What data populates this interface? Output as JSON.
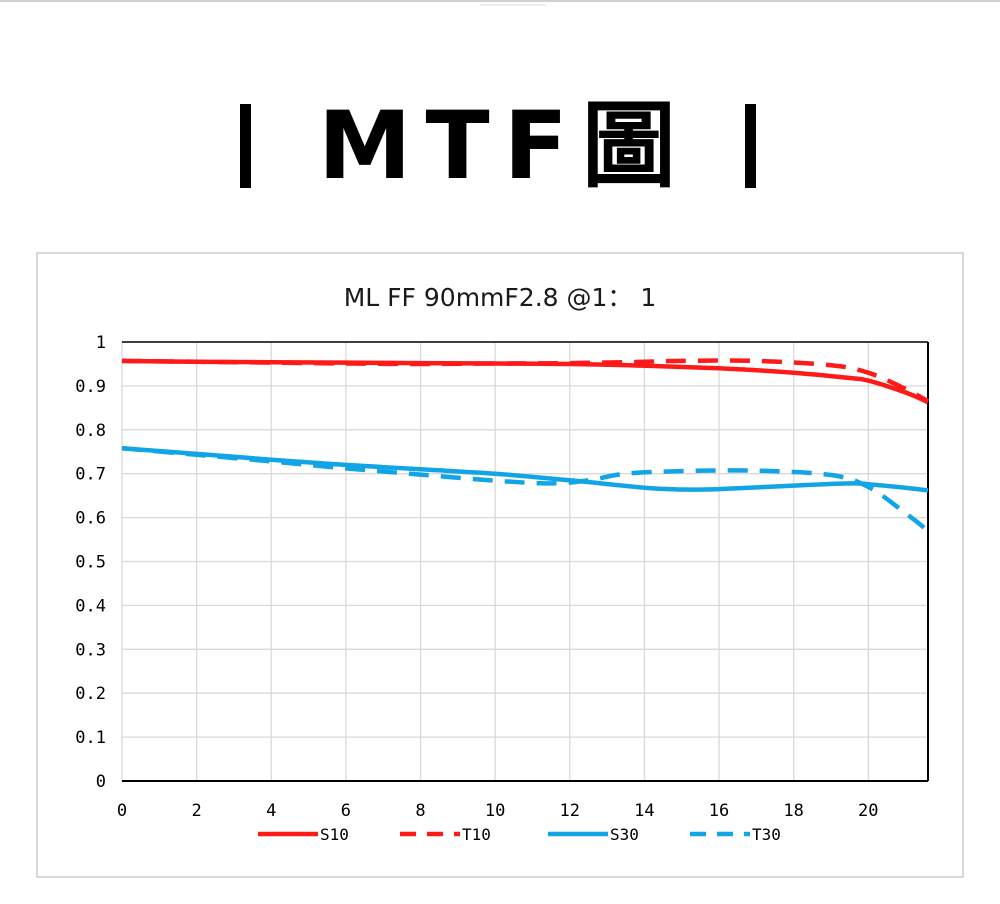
{
  "heading": {
    "bar_glyph": "|",
    "text": "MTF圖"
  },
  "chart_data": {
    "type": "line",
    "title": "ML FF 90mmF2.8 @1： 1",
    "xlabel": "",
    "ylabel": "",
    "xlim": [
      0,
      21.6
    ],
    "ylim": [
      0,
      1
    ],
    "x_ticks": [
      "0",
      "2",
      "4",
      "6",
      "8",
      "10",
      "12",
      "14",
      "16",
      "18",
      "20"
    ],
    "y_ticks": [
      "1",
      "0.9",
      "0.8",
      "0.7",
      "0.6",
      "0.5",
      "0.4",
      "0.3",
      "0.2",
      "0.1",
      "0"
    ],
    "grid": true,
    "legend_position": "bottom",
    "series": [
      {
        "name": "S10",
        "color": "#ff1a1a",
        "dash": false,
        "points": [
          [
            0,
            0.957
          ],
          [
            2,
            0.955
          ],
          [
            4,
            0.954
          ],
          [
            6,
            0.953
          ],
          [
            8,
            0.952
          ],
          [
            10,
            0.951
          ],
          [
            12,
            0.95
          ],
          [
            14,
            0.946
          ],
          [
            16,
            0.94
          ],
          [
            18,
            0.93
          ],
          [
            19.5,
            0.918
          ],
          [
            20,
            0.912
          ],
          [
            21,
            0.885
          ],
          [
            21.6,
            0.863
          ]
        ]
      },
      {
        "name": "T10",
        "color": "#ff1a1a",
        "dash": true,
        "points": [
          [
            0,
            0.957
          ],
          [
            2,
            0.955
          ],
          [
            4,
            0.953
          ],
          [
            6,
            0.951
          ],
          [
            8,
            0.95
          ],
          [
            10,
            0.951
          ],
          [
            12,
            0.952
          ],
          [
            14,
            0.955
          ],
          [
            15,
            0.957
          ],
          [
            17,
            0.957
          ],
          [
            19,
            0.947
          ],
          [
            20,
            0.93
          ],
          [
            21,
            0.893
          ],
          [
            21.6,
            0.865
          ]
        ]
      },
      {
        "name": "S30",
        "color": "#12a5e6",
        "dash": false,
        "points": [
          [
            0,
            0.758
          ],
          [
            2,
            0.745
          ],
          [
            4,
            0.732
          ],
          [
            6,
            0.72
          ],
          [
            8,
            0.71
          ],
          [
            10,
            0.7
          ],
          [
            12,
            0.685
          ],
          [
            14,
            0.668
          ],
          [
            15,
            0.664
          ],
          [
            16,
            0.665
          ],
          [
            18,
            0.673
          ],
          [
            19.5,
            0.678
          ],
          [
            20,
            0.676
          ],
          [
            21,
            0.668
          ],
          [
            21.6,
            0.662
          ]
        ]
      },
      {
        "name": "T30",
        "color": "#12a5e6",
        "dash": true,
        "points": [
          [
            0,
            0.758
          ],
          [
            2,
            0.743
          ],
          [
            4,
            0.728
          ],
          [
            6,
            0.712
          ],
          [
            8,
            0.698
          ],
          [
            10,
            0.684
          ],
          [
            11.5,
            0.678
          ],
          [
            12.5,
            0.685
          ],
          [
            13.5,
            0.7
          ],
          [
            15,
            0.706
          ],
          [
            17,
            0.707
          ],
          [
            19,
            0.697
          ],
          [
            20,
            0.67
          ],
          [
            21,
            0.61
          ],
          [
            21.6,
            0.57
          ]
        ]
      }
    ]
  }
}
